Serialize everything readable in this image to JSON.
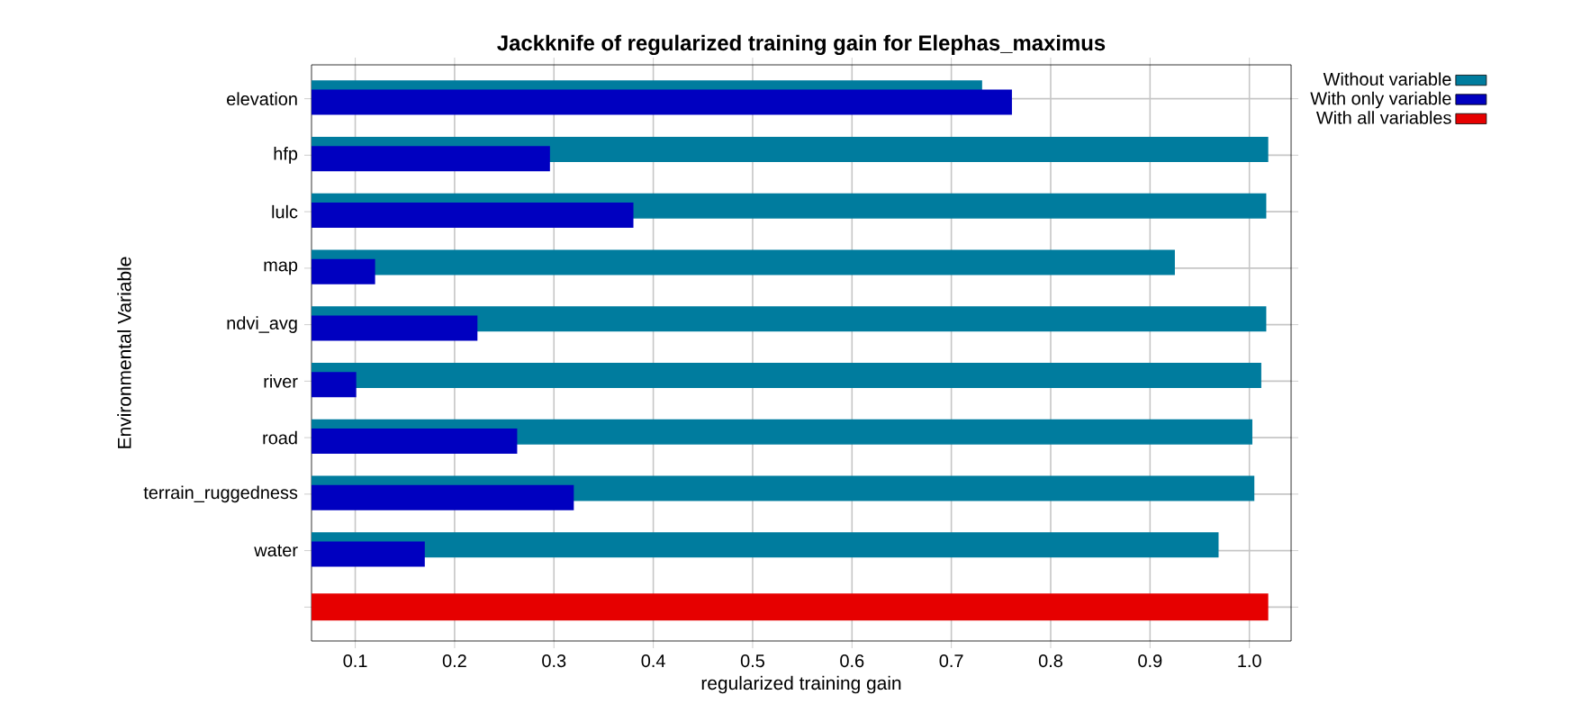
{
  "chart_data": {
    "type": "bar",
    "orientation": "horizontal",
    "title": "Jackknife of regularized training gain for Elephas_maximus",
    "xlabel": "regularized training gain",
    "ylabel": "Environmental Variable",
    "categories": [
      "elevation",
      "hfp",
      "lulc",
      "map",
      "ndvi_avg",
      "river",
      "road",
      "terrain_ruggedness",
      "water",
      null
    ],
    "series": [
      {
        "name": "Without variable",
        "color": "#007c9e",
        "values": [
          0.731,
          1.019,
          1.017,
          0.925,
          1.017,
          1.012,
          1.003,
          1.005,
          0.969,
          null
        ]
      },
      {
        "name": "With only variable",
        "color": "#0000c0",
        "values": [
          0.761,
          0.296,
          0.38,
          0.12,
          0.223,
          0.101,
          0.263,
          0.32,
          0.17,
          null
        ]
      },
      {
        "name": "With all variables",
        "color": "#e60000",
        "values": [
          null,
          null,
          null,
          null,
          null,
          null,
          null,
          null,
          null,
          1.019
        ]
      }
    ],
    "xlim": [
      0.056,
      1.042
    ],
    "xticks": [
      0.1,
      0.2,
      0.3,
      0.4,
      0.5,
      0.6,
      0.7,
      0.8,
      0.9,
      {
        "value": 1.0,
        "label": "1.0"
      }
    ],
    "grid": true,
    "legend": "top right"
  }
}
